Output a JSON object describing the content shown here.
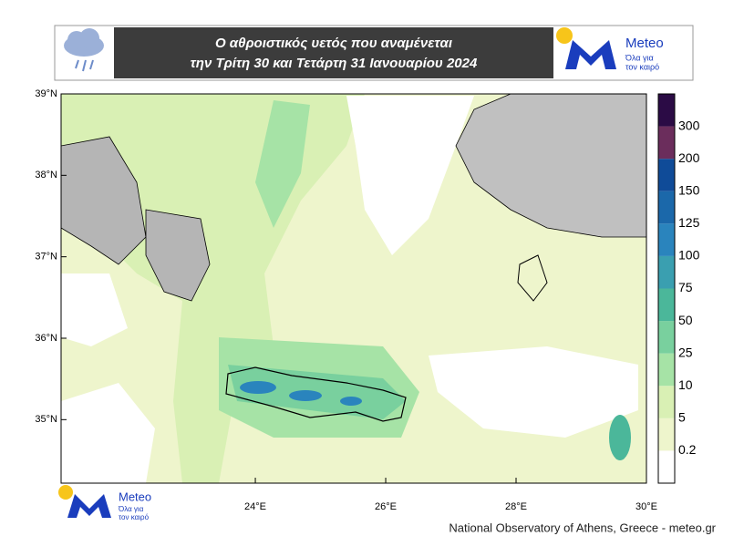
{
  "header": {
    "title_line1": "Ο αθροιστικός υετός που αναμένεται",
    "title_line2": "την Τρίτη 30 και Τετάρτη 31 Ιανουαρίου 2024"
  },
  "logo": {
    "name": "Meteo",
    "tagline_line1": "Όλα για",
    "tagline_line2": "τον καιρό"
  },
  "map": {
    "xlim": [
      21.02,
      30
    ],
    "ylim": [
      34.22,
      39
    ],
    "lon_ticks": [
      {
        "value": 24,
        "label": "24°E"
      },
      {
        "value": 26,
        "label": "26°E"
      },
      {
        "value": 28,
        "label": "28°E"
      },
      {
        "value": 30,
        "label": "30°E"
      }
    ],
    "lat_ticks": [
      {
        "value": 39,
        "label": "39°N"
      },
      {
        "value": 38,
        "label": "38°N"
      },
      {
        "value": 37,
        "label": "37°N"
      },
      {
        "value": 36,
        "label": "36°N"
      },
      {
        "value": 35,
        "label": "35°N"
      }
    ]
  },
  "colorbar": {
    "levels": [
      0.2,
      5,
      10,
      25,
      50,
      75,
      100,
      125,
      150,
      200,
      300
    ],
    "colors": [
      "#ffffff",
      "#eef5cc",
      "#d9f0b4",
      "#a6e3a6",
      "#79d09e",
      "#4bb79a",
      "#3a9fb0",
      "#2a84bd",
      "#1b68aa",
      "#0f4b98",
      "#6b2d5c",
      "#2b0b45"
    ]
  },
  "footer": "National Observatory of Athens, Greece - meteo.gr"
}
